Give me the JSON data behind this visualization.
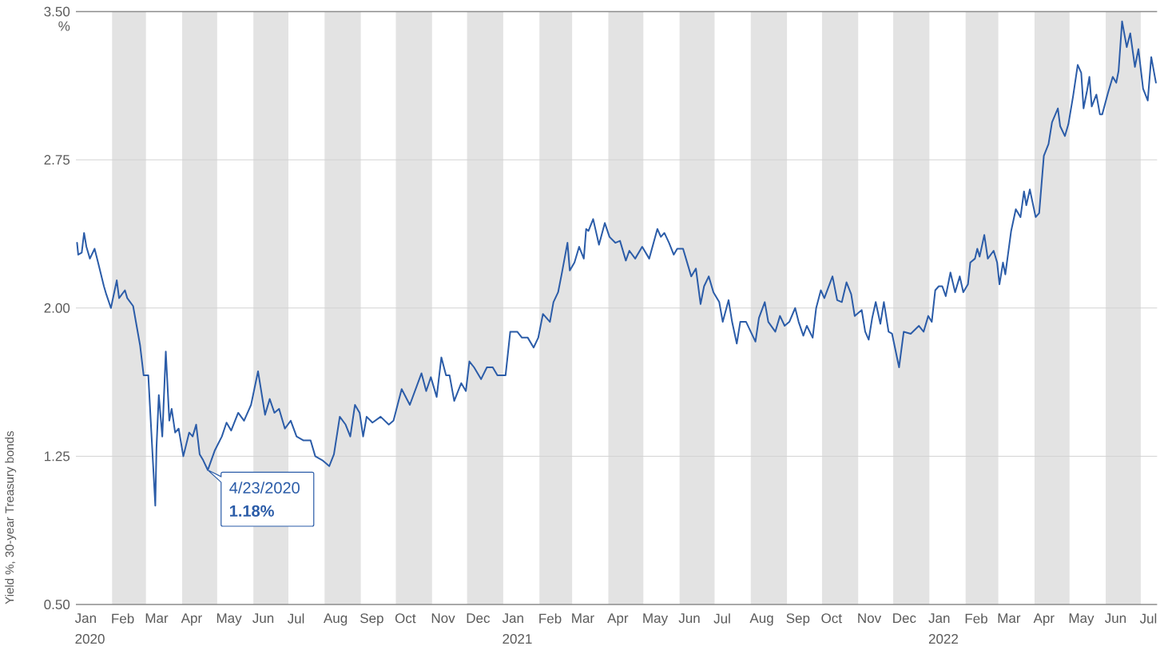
{
  "chart_data": {
    "type": "line",
    "ylabel": "Yield %, 30-year Treasury bonds",
    "x": [
      "2020-01-02",
      "2020-01-03",
      "2020-01-06",
      "2020-01-08",
      "2020-01-10",
      "2020-01-13",
      "2020-01-17",
      "2020-01-20",
      "2020-01-25",
      "2020-01-27",
      "2020-01-31",
      "2020-02-05",
      "2020-02-07",
      "2020-02-12",
      "2020-02-14",
      "2020-02-19",
      "2020-02-25",
      "2020-02-28",
      "2020-03-03",
      "2020-03-09",
      "2020-03-10",
      "2020-03-12",
      "2020-03-15",
      "2020-03-18",
      "2020-03-21",
      "2020-03-23",
      "2020-03-26",
      "2020-03-29",
      "2020-04-02",
      "2020-04-07",
      "2020-04-10",
      "2020-04-13",
      "2020-04-16",
      "2020-04-19",
      "2020-04-23",
      "2020-04-29",
      "2020-05-05",
      "2020-05-09",
      "2020-05-13",
      "2020-05-19",
      "2020-05-24",
      "2020-05-30",
      "2020-06-05",
      "2020-06-11",
      "2020-06-15",
      "2020-06-19",
      "2020-06-23",
      "2020-06-28",
      "2020-07-03",
      "2020-07-08",
      "2020-07-14",
      "2020-07-20",
      "2020-07-24",
      "2020-07-30",
      "2020-08-05",
      "2020-08-09",
      "2020-08-14",
      "2020-08-19",
      "2020-08-23",
      "2020-08-27",
      "2020-08-31",
      "2020-09-03",
      "2020-09-06",
      "2020-09-11",
      "2020-09-18",
      "2020-09-25",
      "2020-09-29",
      "2020-10-06",
      "2020-10-13",
      "2020-10-23",
      "2020-10-27",
      "2020-10-31",
      "2020-11-05",
      "2020-11-09",
      "2020-11-13",
      "2020-11-16",
      "2020-11-20",
      "2020-11-26",
      "2020-11-30",
      "2020-12-03",
      "2020-12-07",
      "2020-12-13",
      "2020-12-18",
      "2020-12-23",
      "2020-12-27",
      "2021-01-03",
      "2021-01-07",
      "2021-01-13",
      "2021-01-17",
      "2021-01-22",
      "2021-01-27",
      "2021-01-31",
      "2021-02-04",
      "2021-02-10",
      "2021-02-13",
      "2021-02-17",
      "2021-02-20",
      "2021-02-25",
      "2021-02-27",
      "2021-03-03",
      "2021-03-07",
      "2021-03-11",
      "2021-03-13",
      "2021-03-15",
      "2021-03-19",
      "2021-03-24",
      "2021-03-29",
      "2021-04-02",
      "2021-04-07",
      "2021-04-11",
      "2021-04-16",
      "2021-04-19",
      "2021-04-24",
      "2021-04-30",
      "2021-05-06",
      "2021-05-13",
      "2021-05-16",
      "2021-05-19",
      "2021-05-23",
      "2021-05-27",
      "2021-05-30",
      "2021-06-04",
      "2021-06-06",
      "2021-06-11",
      "2021-06-15",
      "2021-06-19",
      "2021-06-22",
      "2021-06-26",
      "2021-06-30",
      "2021-07-05",
      "2021-07-08",
      "2021-07-13",
      "2021-07-16",
      "2021-07-20",
      "2021-07-23",
      "2021-07-28",
      "2021-08-05",
      "2021-08-08",
      "2021-08-13",
      "2021-08-16",
      "2021-08-22",
      "2021-08-26",
      "2021-08-30",
      "2021-09-03",
      "2021-09-08",
      "2021-09-11",
      "2021-09-15",
      "2021-09-18",
      "2021-09-23",
      "2021-09-26",
      "2021-09-30",
      "2021-10-03",
      "2021-10-10",
      "2021-10-14",
      "2021-10-18",
      "2021-10-22",
      "2021-10-26",
      "2021-10-29",
      "2021-11-04",
      "2021-11-07",
      "2021-11-10",
      "2021-11-13",
      "2021-11-16",
      "2021-11-20",
      "2021-11-23",
      "2021-11-27",
      "2021-11-30",
      "2021-12-06",
      "2021-12-10",
      "2021-12-16",
      "2021-12-23",
      "2021-12-27",
      "2021-12-31",
      "2022-01-03",
      "2022-01-06",
      "2022-01-09",
      "2022-01-12",
      "2022-01-15",
      "2022-01-19",
      "2022-01-23",
      "2022-01-27",
      "2022-01-30",
      "2022-02-03",
      "2022-02-05",
      "2022-02-09",
      "2022-02-11",
      "2022-02-13",
      "2022-02-17",
      "2022-02-20",
      "2022-02-25",
      "2022-02-28",
      "2022-03-02",
      "2022-03-05",
      "2022-03-07",
      "2022-03-12",
      "2022-03-16",
      "2022-03-20",
      "2022-03-23",
      "2022-03-25",
      "2022-03-28",
      "2022-04-02",
      "2022-04-05",
      "2022-04-09",
      "2022-04-13",
      "2022-04-16",
      "2022-04-21",
      "2022-04-23",
      "2022-04-27",
      "2022-04-30",
      "2022-05-04",
      "2022-05-08",
      "2022-05-11",
      "2022-05-13",
      "2022-05-16",
      "2022-05-18",
      "2022-05-20",
      "2022-05-24",
      "2022-05-27",
      "2022-05-29",
      "2022-06-03",
      "2022-06-07",
      "2022-06-10",
      "2022-06-12",
      "2022-06-15",
      "2022-06-19",
      "2022-06-22",
      "2022-06-26",
      "2022-06-29",
      "2022-07-03",
      "2022-07-07",
      "2022-07-10",
      "2022-07-14"
    ],
    "values": [
      2.33,
      2.27,
      2.28,
      2.38,
      2.31,
      2.25,
      2.3,
      2.23,
      2.11,
      2.07,
      2.0,
      2.14,
      2.05,
      2.09,
      2.05,
      2.01,
      1.81,
      1.66,
      1.66,
      1.0,
      1.29,
      1.56,
      1.35,
      1.78,
      1.43,
      1.49,
      1.37,
      1.39,
      1.25,
      1.37,
      1.35,
      1.41,
      1.26,
      1.23,
      1.18,
      1.28,
      1.35,
      1.42,
      1.38,
      1.47,
      1.43,
      1.51,
      1.68,
      1.46,
      1.54,
      1.47,
      1.49,
      1.39,
      1.43,
      1.35,
      1.33,
      1.33,
      1.25,
      1.23,
      1.2,
      1.26,
      1.45,
      1.41,
      1.35,
      1.51,
      1.47,
      1.35,
      1.45,
      1.42,
      1.45,
      1.41,
      1.43,
      1.59,
      1.51,
      1.67,
      1.58,
      1.65,
      1.55,
      1.75,
      1.66,
      1.66,
      1.53,
      1.62,
      1.58,
      1.73,
      1.7,
      1.64,
      1.7,
      1.7,
      1.66,
      1.66,
      1.88,
      1.88,
      1.85,
      1.85,
      1.8,
      1.85,
      1.97,
      1.93,
      2.03,
      2.08,
      2.17,
      2.33,
      2.19,
      2.23,
      2.31,
      2.25,
      2.4,
      2.39,
      2.45,
      2.32,
      2.43,
      2.36,
      2.33,
      2.34,
      2.24,
      2.29,
      2.25,
      2.31,
      2.25,
      2.4,
      2.36,
      2.38,
      2.33,
      2.27,
      2.3,
      2.3,
      2.26,
      2.16,
      2.2,
      2.02,
      2.11,
      2.16,
      2.08,
      2.03,
      1.93,
      2.04,
      1.93,
      1.82,
      1.93,
      1.93,
      1.83,
      1.95,
      2.03,
      1.93,
      1.88,
      1.96,
      1.91,
      1.93,
      2.0,
      1.93,
      1.86,
      1.91,
      1.85,
      2.0,
      2.09,
      2.05,
      2.16,
      2.04,
      2.03,
      2.13,
      2.07,
      1.96,
      1.99,
      1.88,
      1.84,
      1.95,
      2.03,
      1.92,
      2.03,
      1.88,
      1.87,
      1.7,
      1.88,
      1.87,
      1.91,
      1.88,
      1.96,
      1.93,
      2.09,
      2.11,
      2.11,
      2.06,
      2.18,
      2.08,
      2.16,
      2.08,
      2.12,
      2.23,
      2.25,
      2.3,
      2.26,
      2.37,
      2.25,
      2.29,
      2.23,
      2.12,
      2.23,
      2.17,
      2.39,
      2.5,
      2.46,
      2.59,
      2.52,
      2.6,
      2.46,
      2.48,
      2.77,
      2.83,
      2.94,
      3.01,
      2.92,
      2.87,
      2.93,
      3.07,
      3.23,
      3.19,
      3.01,
      3.1,
      3.17,
      3.02,
      3.08,
      2.98,
      2.98,
      3.09,
      3.17,
      3.14,
      3.2,
      3.45,
      3.32,
      3.39,
      3.22,
      3.31,
      3.11,
      3.05,
      3.27,
      3.14
    ],
    "color": "#2b5ca8",
    "xlim": [
      "2020-01-01",
      "2022-07-15"
    ],
    "ylim": [
      0.5,
      3.5
    ],
    "xticks": [
      {
        "value": "2020-01-10",
        "label": "Jan 2020"
      },
      {
        "value": "2020-02-10",
        "label": "Feb"
      },
      {
        "value": "2020-03-10",
        "label": "Mar"
      },
      {
        "value": "2020-04-10",
        "label": "Apr"
      },
      {
        "value": "2020-05-10",
        "label": "May"
      },
      {
        "value": "2020-06-10",
        "label": "Jun"
      },
      {
        "value": "2020-07-10",
        "label": "Jul"
      },
      {
        "value": "2020-08-10",
        "label": "Aug"
      },
      {
        "value": "2020-09-10",
        "label": "Sep"
      },
      {
        "value": "2020-10-10",
        "label": "Oct"
      },
      {
        "value": "2020-11-10",
        "label": "Nov"
      },
      {
        "value": "2020-12-10",
        "label": "Dec"
      },
      {
        "value": "2021-01-10",
        "label": "Jan 2021"
      },
      {
        "value": "2021-02-10",
        "label": "Feb"
      },
      {
        "value": "2021-03-10",
        "label": "Mar"
      },
      {
        "value": "2021-04-10",
        "label": "Apr"
      },
      {
        "value": "2021-05-10",
        "label": "May"
      },
      {
        "value": "2021-06-10",
        "label": "Jun"
      },
      {
        "value": "2021-07-10",
        "label": "Jul"
      },
      {
        "value": "2021-08-10",
        "label": "Aug"
      },
      {
        "value": "2021-09-10",
        "label": "Sep"
      },
      {
        "value": "2021-10-10",
        "label": "Oct"
      },
      {
        "value": "2021-11-10",
        "label": "Nov"
      },
      {
        "value": "2021-12-10",
        "label": "Dec"
      },
      {
        "value": "2022-01-10",
        "label": "Jan 2022"
      },
      {
        "value": "2022-02-10",
        "label": "Feb"
      },
      {
        "value": "2022-03-10",
        "label": "Mar"
      },
      {
        "value": "2022-04-10",
        "label": "Apr"
      },
      {
        "value": "2022-05-10",
        "label": "May"
      },
      {
        "value": "2022-06-10",
        "label": "Jun"
      },
      {
        "value": "2022-07-10",
        "label": "Jul"
      }
    ],
    "yticks": [
      {
        "value": 0.5,
        "label": "0.50"
      },
      1.25,
      {
        "value": 2,
        "label": "2.00"
      },
      2.75,
      {
        "value": 3.5,
        "label": "3.50"
      }
    ],
    "grid": "y",
    "bands": [
      {
        "axis": "x",
        "from": "2020-02-01",
        "to": "2020-03-01",
        "color": "#e3e3e3"
      },
      {
        "axis": "x",
        "from": "2020-04-01",
        "to": "2020-05-01",
        "color": "#e3e3e3"
      },
      {
        "axis": "x",
        "from": "2020-06-01",
        "to": "2020-07-01",
        "color": "#e3e3e3"
      },
      {
        "axis": "x",
        "from": "2020-08-01",
        "to": "2020-09-01",
        "color": "#e3e3e3"
      },
      {
        "axis": "x",
        "from": "2020-10-01",
        "to": "2020-11-01",
        "color": "#e3e3e3"
      },
      {
        "axis": "x",
        "from": "2020-12-01",
        "to": "2021-01-01",
        "color": "#e3e3e3"
      },
      {
        "axis": "x",
        "from": "2021-02-01",
        "to": "2021-03-01",
        "color": "#e3e3e3"
      },
      {
        "axis": "x",
        "from": "2021-04-01",
        "to": "2021-05-01",
        "color": "#e3e3e3"
      },
      {
        "axis": "x",
        "from": "2021-06-01",
        "to": "2021-07-01",
        "color": "#e3e3e3"
      },
      {
        "axis": "x",
        "from": "2021-08-01",
        "to": "2021-09-01",
        "color": "#e3e3e3"
      },
      {
        "axis": "x",
        "from": "2021-10-01",
        "to": "2021-11-01",
        "color": "#e3e3e3"
      },
      {
        "axis": "x",
        "from": "2021-12-01",
        "to": "2022-01-01",
        "color": "#e3e3e3"
      },
      {
        "axis": "x",
        "from": "2022-02-01",
        "to": "2022-03-01",
        "color": "#e3e3e3"
      },
      {
        "axis": "x",
        "from": "2022-04-01",
        "to": "2022-05-01",
        "color": "#e3e3e3"
      },
      {
        "axis": "x",
        "from": "2022-06-01",
        "to": "2022-07-01",
        "color": "#e3e3e3"
      }
    ],
    "annotations": [
      "%",
      {
        "text": "4/23/2020 **1.18%**",
        "x": "2020-04-23",
        "y": 1.18
      }
    ]
  }
}
